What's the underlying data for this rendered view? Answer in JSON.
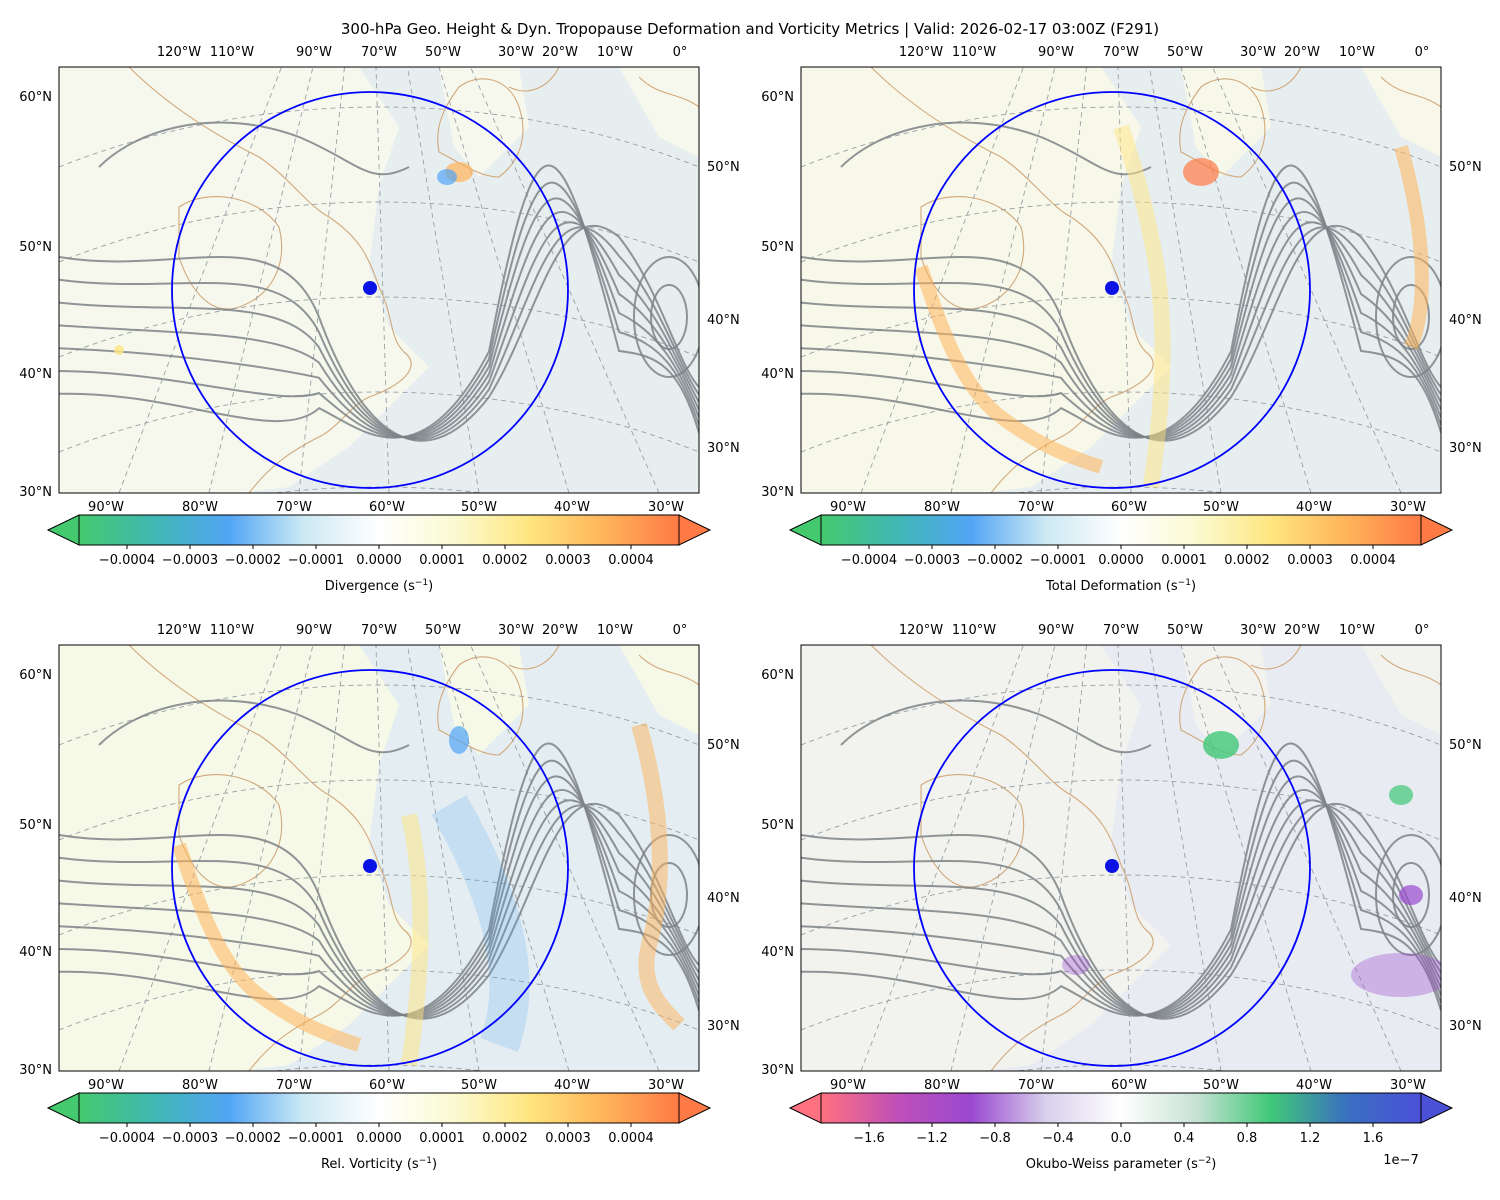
{
  "figure": {
    "title": "300-hPa Geo. Height & Dyn. Tropopause Deformation and Vorticity Metrics |  Valid: 2026-02-17 03:00Z (F291)"
  },
  "map": {
    "top_lon_labels": [
      "120°W",
      "110°W",
      "90°W",
      "70°W",
      "50°W",
      "30°W",
      "20°W",
      "10°W",
      "0°"
    ],
    "bottom_lon_labels": [
      "90°W",
      "80°W",
      "70°W",
      "60°W",
      "50°W",
      "40°W",
      "30°W"
    ],
    "left_lat_labels": [
      "60°N",
      "50°N",
      "40°N",
      "30°N"
    ],
    "right_lat_labels": [
      "50°N",
      "40°N",
      "30°N"
    ],
    "point": {
      "name": "center-marker",
      "color": "#0a12e6"
    },
    "ring_color": "#0000ff",
    "coast_color": "#d2a87a",
    "height_contour_color": "#7d8386"
  },
  "panels": [
    {
      "id": "divergence",
      "colorbar": {
        "label": "Divergence (s",
        "label_sup": "−1",
        "label_tail": ")",
        "ticks": [
          "−0.0004",
          "−0.0003",
          "−0.0002",
          "−0.0001",
          "0.0000",
          "0.0001",
          "0.0002",
          "0.0003",
          "0.0004"
        ],
        "colors": [
          "#45c96e",
          "#3fb7b3",
          "#52a5f5",
          "#cde9f3",
          "#ffffff",
          "#fafad2",
          "#ffe680",
          "#ffb45a",
          "#ff7a45"
        ]
      }
    },
    {
      "id": "total-deformation",
      "colorbar": {
        "label": "Total Deformation (s",
        "label_sup": "−1",
        "label_tail": ")",
        "ticks": [
          "−0.0004",
          "−0.0003",
          "−0.0002",
          "−0.0001",
          "0.0000",
          "0.0001",
          "0.0002",
          "0.0003",
          "0.0004"
        ],
        "colors": [
          "#45c96e",
          "#3fb7b3",
          "#52a5f5",
          "#cde9f3",
          "#ffffff",
          "#fafad2",
          "#ffe680",
          "#ffb45a",
          "#ff7a45"
        ]
      }
    },
    {
      "id": "relative-vorticity",
      "colorbar": {
        "label": "Rel. Vorticity (s",
        "label_sup": "−1",
        "label_tail": ")",
        "ticks": [
          "−0.0004",
          "−0.0003",
          "−0.0002",
          "−0.0001",
          "0.0000",
          "0.0001",
          "0.0002",
          "0.0003",
          "0.0004"
        ],
        "colors": [
          "#45c96e",
          "#3fb7b3",
          "#52a5f5",
          "#cde9f3",
          "#ffffff",
          "#fafad2",
          "#ffe680",
          "#ffb45a",
          "#ff7a45"
        ]
      }
    },
    {
      "id": "okubo-weiss",
      "colorbar": {
        "label": "Okubo-Weiss parameter (s",
        "label_sup": "−2",
        "label_tail": ")",
        "ticks": [
          "−1.6",
          "−1.2",
          "−0.8",
          "−0.4",
          "0.0",
          "0.4",
          "0.8",
          "1.2",
          "1.6"
        ],
        "offset_text": "1e−7",
        "colors": [
          "#ff7080",
          "#c050b8",
          "#9a48d0",
          "#d8d0ec",
          "#ffffff",
          "#c8e2d4",
          "#40c878",
          "#3a70c0",
          "#4a50d8"
        ]
      }
    }
  ]
}
